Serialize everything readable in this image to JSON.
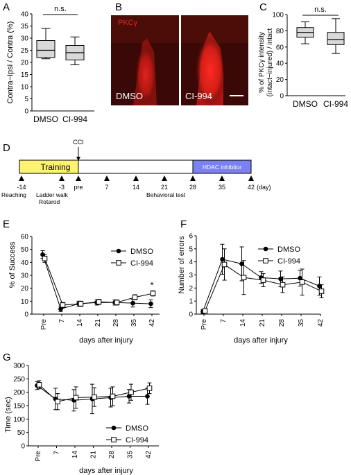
{
  "panels": {
    "A": {
      "letter": "A",
      "chart_data": {
        "type": "box",
        "ylabel": "Contra−Ipsi / Contra (%)",
        "ylim": [
          0,
          40
        ],
        "yticks": [
          0,
          5,
          10,
          15,
          20,
          25,
          30,
          35,
          40
        ],
        "categories": [
          "DMSO",
          "CI-994"
        ],
        "boxes": [
          {
            "min": 21.5,
            "q1": 22.0,
            "median": 25.0,
            "q3": 29.0,
            "max": 34.0
          },
          {
            "min": 19.0,
            "q1": 21.0,
            "median": 24.0,
            "q3": 27.0,
            "max": 30.5
          }
        ],
        "annotation": "n.s."
      }
    },
    "B": {
      "letter": "B",
      "stain_label": "PKCγ",
      "left_label": "DMSO",
      "right_label": "CI-994",
      "colors": {
        "bg": "#3a0806",
        "signal": "#e8231e"
      }
    },
    "C": {
      "letter": "C",
      "chart_data": {
        "type": "box",
        "ylabel_line1": "% of PKCγ intensity",
        "ylabel_line2": "(intact−injured) / intact",
        "ylim": [
          0,
          100
        ],
        "yticks": [
          0,
          20,
          40,
          60,
          80,
          100
        ],
        "categories": [
          "DMSO",
          "CI-994"
        ],
        "boxes": [
          {
            "min": 64,
            "q1": 72,
            "median": 78,
            "q3": 84,
            "max": 91
          },
          {
            "min": 52,
            "q1": 63,
            "median": 69,
            "q3": 78,
            "max": 95
          }
        ],
        "annotation": "n.s."
      }
    },
    "D": {
      "letter": "D",
      "training_label": "Training",
      "hdac_label": "HDAC inhibitor",
      "cci_label": "CCI",
      "ticks": [
        "-14",
        "-3",
        "pre",
        "7",
        "14",
        "21",
        "28",
        "35",
        "42"
      ],
      "unit": "(day)",
      "notes": [
        "Reaching",
        "Ladder walk",
        "Rotarod",
        "Behavioral test"
      ],
      "colors": {
        "training": "#fdf372",
        "hdac": "#7b80f2"
      }
    },
    "E": {
      "letter": "E",
      "chart_data": {
        "type": "line",
        "x": [
          "Pre",
          "7",
          "14",
          "21",
          "28",
          "35",
          "42"
        ],
        "xlabel": "days after injury",
        "ylabel": "% of Success",
        "ylim": [
          0,
          60
        ],
        "yticks": [
          0,
          10,
          20,
          30,
          40,
          50,
          60
        ],
        "legend": "top-right",
        "series": [
          {
            "name": "DMSO",
            "marker": "circle",
            "values": [
              46,
              4,
              8,
              9,
              9,
              8.5,
              8
            ],
            "err": [
              3,
              2,
              2,
              2,
              2,
              3,
              3
            ]
          },
          {
            "name": "CI-994",
            "marker": "square",
            "values": [
              43,
              7,
              8,
              9.5,
              9,
              13,
              16
            ],
            "err": [
              3,
              2,
              2,
              2,
              2,
              2,
              2
            ]
          }
        ],
        "annotation": "*"
      }
    },
    "F": {
      "letter": "F",
      "chart_data": {
        "type": "line",
        "x": [
          "Pre",
          "7",
          "14",
          "21",
          "28",
          "35",
          "42"
        ],
        "xlabel": "days after injury",
        "ylabel": "Number of errors",
        "ylim": [
          0,
          6
        ],
        "yticks": [
          0,
          1,
          2,
          3,
          4,
          5,
          6
        ],
        "legend": "top-right",
        "series": [
          {
            "name": "DMSO",
            "marker": "circle",
            "values": [
              0.2,
              4.2,
              3.85,
              2.8,
              2.7,
              2.75,
              2.15
            ],
            "err": [
              0.15,
              1.15,
              1.3,
              0.45,
              0.6,
              0.6,
              0.7
            ]
          },
          {
            "name": "CI-994",
            "marker": "square",
            "values": [
              0.25,
              3.8,
              2.8,
              2.6,
              2.25,
              2.45,
              1.75
            ],
            "err": [
              0.15,
              1.2,
              1.3,
              0.5,
              0.6,
              1.0,
              0.5
            ]
          }
        ]
      }
    },
    "G": {
      "letter": "G",
      "chart_data": {
        "type": "line",
        "x": [
          "Pre",
          "7",
          "14",
          "21",
          "28",
          "35",
          "42"
        ],
        "xlabel": "days after injury",
        "ylabel": "Time (sec)",
        "ylim": [
          0,
          300
        ],
        "yticks": [
          0,
          50,
          100,
          150,
          200,
          250,
          300
        ],
        "legend": "bottom-right",
        "series": [
          {
            "name": "DMSO",
            "marker": "circle",
            "values": [
              225,
              175,
              170,
              175,
              180,
              185,
              185
            ],
            "err": [
              15,
              40,
              40,
              55,
              35,
              25,
              30
            ]
          },
          {
            "name": "CI-994",
            "marker": "square",
            "values": [
              228,
              165,
              180,
              182,
              185,
              200,
              215
            ],
            "err": [
              15,
              30,
              40,
              35,
              35,
              30,
              20
            ]
          }
        ]
      }
    }
  }
}
